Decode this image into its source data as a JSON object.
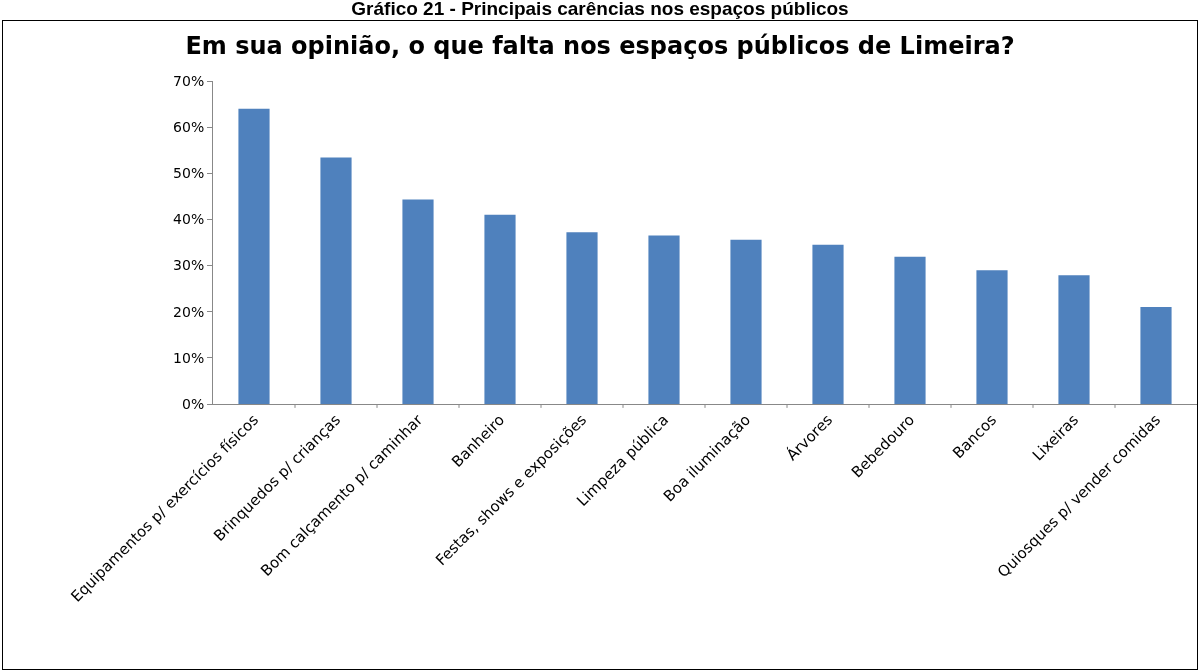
{
  "chart_data": {
    "type": "bar",
    "title": "Em sua opinião, o que falta nos espaços públicos de Limeira?",
    "subtitle": "Gráfico 21 - Principais carências nos espaços públicos",
    "categories": [
      "Equipamentos p/ exercícios físicos",
      "Brinquedos p/ crianças",
      "Bom calçamento p/ caminhar",
      "Banheiro",
      "Festas, shows e exposições",
      "Limpeza pública",
      "Boa iluminação",
      "Árvores",
      "Bebedouro",
      "Bancos",
      "Lixeiras",
      "Quiosques p/ vender comidas"
    ],
    "values": [
      64,
      53.4,
      44.3,
      41,
      37.2,
      36.5,
      35.6,
      34.5,
      31.9,
      29,
      27.9,
      21
    ],
    "color": "#4f81bd",
    "ylim": [
      0,
      70
    ],
    "yticks": [
      {
        "value": 0,
        "label": "0%"
      },
      {
        "value": 10,
        "label": "10%"
      },
      {
        "value": 20,
        "label": "20%"
      },
      {
        "value": 30,
        "label": "30%"
      },
      {
        "value": 40,
        "label": "40%"
      },
      {
        "value": 50,
        "label": "50%"
      },
      {
        "value": 60,
        "label": "60%"
      },
      {
        "value": 70,
        "label": "70%"
      }
    ],
    "grid": false,
    "legend": false
  }
}
